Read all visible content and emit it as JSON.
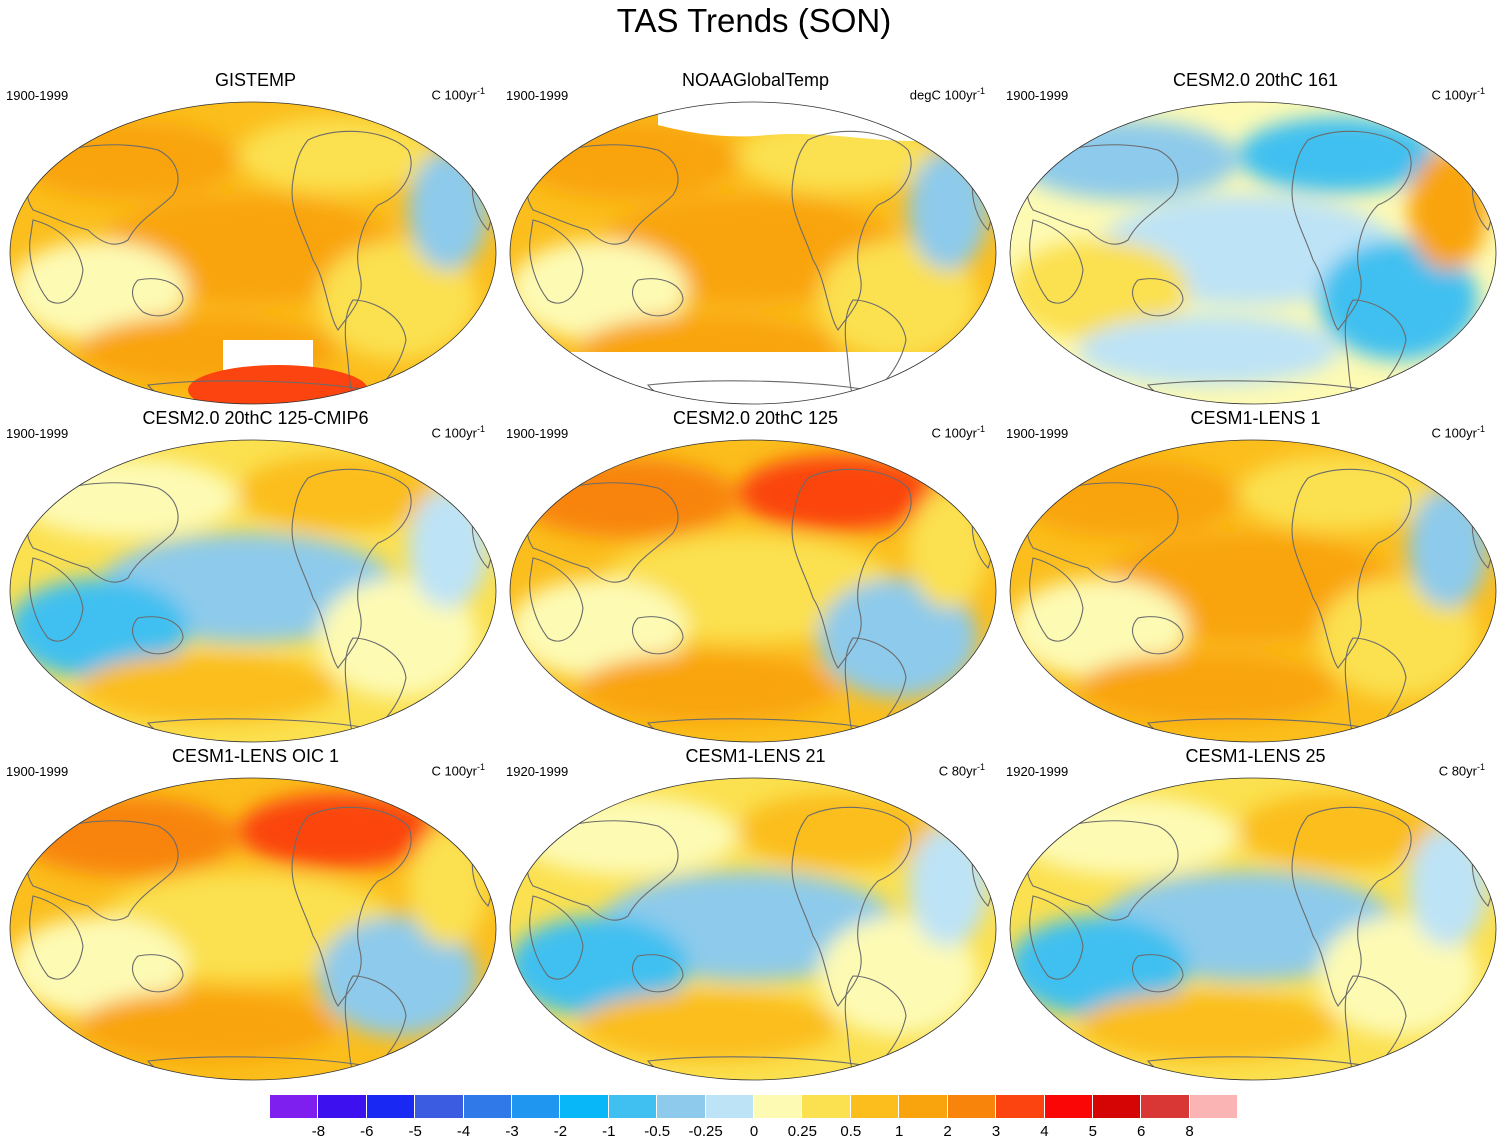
{
  "title": "TAS Trends (SON)",
  "panels": [
    {
      "title": "GISTEMP",
      "period": "1900-1999",
      "units": "C 100yr",
      "units_exp": "-1",
      "scheme": "warm",
      "mask": "gistemp"
    },
    {
      "title": "NOAAGlobalTemp",
      "period": "1900-1999",
      "units": "degC 100yr",
      "units_exp": "-1",
      "scheme": "warm",
      "mask": "noaa"
    },
    {
      "title": "CESM2.0 20thC 161",
      "period": "1900-1999",
      "units": "C 100yr",
      "units_exp": "-1",
      "scheme": "cool",
      "mask": "none"
    },
    {
      "title": "CESM2.0 20thC 125-CMIP6",
      "period": "1900-1999",
      "units": "C 100yr",
      "units_exp": "-1",
      "scheme": "mixed",
      "mask": "none"
    },
    {
      "title": "CESM2.0 20thC 125",
      "period": "1900-1999",
      "units": "C 100yr",
      "units_exp": "-1",
      "scheme": "hot",
      "mask": "none"
    },
    {
      "title": "CESM1-LENS 1",
      "period": "1900-1999",
      "units": "C 100yr",
      "units_exp": "-1",
      "scheme": "warm",
      "mask": "none"
    },
    {
      "title": "CESM1-LENS OIC 1",
      "period": "1900-1999",
      "units": "C 100yr",
      "units_exp": "-1",
      "scheme": "hot",
      "mask": "none"
    },
    {
      "title": "CESM1-LENS 21",
      "period": "1920-1999",
      "units": "C 80yr",
      "units_exp": "-1",
      "scheme": "mixed",
      "mask": "none"
    },
    {
      "title": "CESM1-LENS 25",
      "period": "1920-1999",
      "units": "C 80yr",
      "units_exp": "-1",
      "scheme": "mixed",
      "mask": "none"
    }
  ],
  "colorbar": {
    "colors": [
      "#7f1fef",
      "#3c10ef",
      "#1a28f4",
      "#3b5be0",
      "#2f7ae8",
      "#1f96f0",
      "#08b7f8",
      "#40c0f0",
      "#8dcaeb",
      "#bde3f6",
      "#fdfab4",
      "#fbe04f",
      "#fbbe1c",
      "#f9a40c",
      "#f8840c",
      "#fb4410",
      "#fb0606",
      "#d50505",
      "#d93636",
      "#fbb4b4"
    ],
    "labels": [
      "-8",
      "-6",
      "-5",
      "-4",
      "-3",
      "-2",
      "-1",
      "-0.5",
      "-0.25",
      "0",
      "0.25",
      "0.5",
      "1",
      "2",
      "3",
      "4",
      "5",
      "6",
      "8"
    ]
  }
}
